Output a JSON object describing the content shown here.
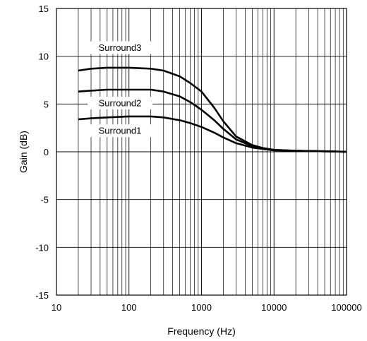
{
  "chart_data": {
    "type": "line",
    "xlabel": "Frequency (Hz)",
    "ylabel": "Gain (dB)",
    "xscale": "log",
    "xlim": [
      10,
      100000
    ],
    "ylim": [
      -15,
      15
    ],
    "grid": true,
    "x_tick_labels": [
      "10",
      "100",
      "1000",
      "10000",
      "100000"
    ],
    "y_tick_labels": [
      "15",
      "10",
      "5",
      "0",
      "-5",
      "-10",
      "-15"
    ],
    "series": [
      {
        "name": "Surround3",
        "x": [
          20,
          30,
          50,
          100,
          200,
          300,
          500,
          700,
          1000,
          1500,
          2000,
          3000,
          5000,
          7000,
          10000,
          20000,
          50000,
          100000
        ],
        "values": [
          8.5,
          8.7,
          8.8,
          8.8,
          8.7,
          8.5,
          7.9,
          7.2,
          6.3,
          4.6,
          3.2,
          1.6,
          0.7,
          0.4,
          0.2,
          0.1,
          0.05,
          0.0
        ]
      },
      {
        "name": "Surround2",
        "x": [
          20,
          30,
          50,
          100,
          200,
          300,
          500,
          700,
          1000,
          1500,
          2000,
          3000,
          5000,
          7000,
          10000,
          20000,
          50000,
          100000
        ],
        "values": [
          6.3,
          6.4,
          6.5,
          6.5,
          6.5,
          6.3,
          5.8,
          5.2,
          4.4,
          3.3,
          2.4,
          1.3,
          0.6,
          0.35,
          0.2,
          0.1,
          0.05,
          0.0
        ]
      },
      {
        "name": "Surround1",
        "x": [
          20,
          30,
          50,
          100,
          200,
          300,
          500,
          700,
          1000,
          1500,
          2000,
          3000,
          5000,
          7000,
          10000,
          20000,
          50000,
          100000
        ],
        "values": [
          3.4,
          3.5,
          3.6,
          3.7,
          3.7,
          3.6,
          3.3,
          3.0,
          2.6,
          2.0,
          1.5,
          0.9,
          0.45,
          0.3,
          0.15,
          0.1,
          0.05,
          0.0
        ]
      }
    ]
  }
}
